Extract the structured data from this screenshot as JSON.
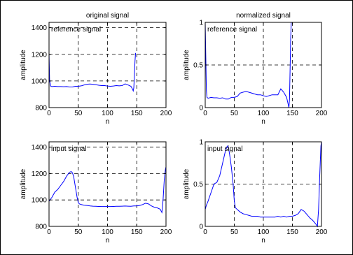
{
  "chart_data": [
    {
      "type": "line",
      "title": "original signal",
      "xlabel": "n",
      "ylabel": "amplitude",
      "xlim": [
        0,
        200
      ],
      "ylim": [
        800,
        1450
      ],
      "xticks": [
        0,
        50,
        100,
        150,
        200
      ],
      "yticks": [
        800,
        1000,
        1200,
        1400
      ],
      "grid": "dashed",
      "annotation": "reference signal",
      "series": [
        {
          "color": "#0000ff",
          "x": [
            0,
            1,
            3,
            5,
            10,
            15,
            20,
            25,
            30,
            35,
            40,
            45,
            50,
            55,
            60,
            65,
            70,
            75,
            80,
            85,
            90,
            95,
            100,
            105,
            110,
            115,
            120,
            125,
            130,
            135,
            140,
            142,
            144,
            145,
            146,
            147,
            148
          ],
          "y": [
            1210,
            1000,
            960,
            958,
            960,
            958,
            958,
            957,
            958,
            955,
            955,
            960,
            960,
            963,
            970,
            975,
            977,
            975,
            972,
            968,
            965,
            965,
            962,
            960,
            962,
            965,
            963,
            965,
            978,
            970,
            960,
            945,
            925,
            950,
            1050,
            1150,
            1210
          ]
        }
      ]
    },
    {
      "type": "line",
      "title": "normalized signal",
      "xlabel": "n",
      "ylabel": "amplitude",
      "xlim": [
        0,
        200
      ],
      "ylim": [
        0,
        1
      ],
      "xticks": [
        0,
        50,
        100,
        150,
        200
      ],
      "yticks": [
        0,
        0.5,
        1
      ],
      "grid": "dashed",
      "annotation": "reference signal",
      "series": [
        {
          "color": "#0000ff",
          "x": [
            0,
            1,
            2,
            3,
            5,
            10,
            15,
            20,
            25,
            30,
            35,
            40,
            45,
            50,
            55,
            60,
            65,
            70,
            75,
            80,
            85,
            90,
            95,
            100,
            105,
            110,
            115,
            120,
            125,
            130,
            135,
            140,
            142,
            144,
            145,
            146,
            147,
            148
          ],
          "y": [
            1.0,
            0.6,
            0.2,
            0.12,
            0.11,
            0.12,
            0.115,
            0.115,
            0.11,
            0.115,
            0.1,
            0.1,
            0.12,
            0.12,
            0.13,
            0.17,
            0.18,
            0.19,
            0.18,
            0.17,
            0.16,
            0.15,
            0.15,
            0.14,
            0.13,
            0.14,
            0.15,
            0.15,
            0.15,
            0.22,
            0.18,
            0.12,
            0.06,
            0.0,
            0.1,
            0.45,
            0.8,
            1.0
          ]
        }
      ]
    },
    {
      "type": "line",
      "title": "",
      "xlabel": "n",
      "ylabel": "amplitude",
      "xlim": [
        0,
        200
      ],
      "ylim": [
        800,
        1450
      ],
      "xticks": [
        0,
        50,
        100,
        150,
        200
      ],
      "yticks": [
        800,
        1000,
        1200,
        1400
      ],
      "grid": "dashed",
      "annotation": "input signal",
      "series": [
        {
          "color": "#0000ff",
          "x": [
            0,
            5,
            10,
            15,
            20,
            25,
            30,
            35,
            38,
            40,
            42,
            45,
            48,
            50,
            52,
            55,
            60,
            65,
            70,
            75,
            80,
            85,
            90,
            95,
            100,
            105,
            110,
            115,
            120,
            125,
            130,
            135,
            140,
            145,
            150,
            155,
            160,
            165,
            170,
            175,
            180,
            185,
            190,
            193,
            195,
            197,
            199,
            200
          ],
          "y": [
            990,
            1020,
            1060,
            1080,
            1110,
            1140,
            1180,
            1210,
            1215,
            1205,
            1180,
            1100,
            1020,
            980,
            970,
            965,
            960,
            958,
            955,
            953,
            952,
            951,
            950,
            950,
            950,
            950,
            951,
            952,
            952,
            953,
            954,
            953,
            952,
            955,
            955,
            958,
            965,
            975,
            970,
            955,
            945,
            940,
            930,
            905,
            1000,
            1150,
            1230,
            1250
          ]
        }
      ]
    },
    {
      "type": "line",
      "title": "",
      "xlabel": "n",
      "ylabel": "amplitude",
      "xlim": [
        0,
        200
      ],
      "ylim": [
        0,
        1
      ],
      "xticks": [
        0,
        50,
        100,
        150,
        200
      ],
      "yticks": [
        0,
        0.5,
        1
      ],
      "grid": "dashed",
      "annotation": "input signal",
      "series": [
        {
          "color": "#0000ff",
          "x": [
            0,
            2,
            5,
            10,
            15,
            20,
            25,
            30,
            35,
            38,
            40,
            42,
            45,
            48,
            50,
            52,
            55,
            60,
            65,
            70,
            75,
            80,
            85,
            90,
            95,
            100,
            105,
            110,
            115,
            120,
            125,
            130,
            135,
            140,
            145,
            150,
            155,
            160,
            165,
            170,
            175,
            180,
            185,
            190,
            193,
            195,
            197,
            199,
            200
          ],
          "y": [
            0.2,
            0.25,
            0.3,
            0.4,
            0.5,
            0.52,
            0.6,
            0.75,
            0.9,
            0.95,
            0.93,
            0.85,
            0.7,
            0.5,
            0.3,
            0.22,
            0.2,
            0.17,
            0.15,
            0.14,
            0.13,
            0.12,
            0.12,
            0.12,
            0.11,
            0.11,
            0.11,
            0.11,
            0.11,
            0.11,
            0.12,
            0.11,
            0.12,
            0.11,
            0.12,
            0.12,
            0.13,
            0.15,
            0.2,
            0.18,
            0.14,
            0.1,
            0.07,
            0.03,
            0.0,
            0.2,
            0.6,
            0.95,
            1.0
          ]
        }
      ]
    }
  ]
}
